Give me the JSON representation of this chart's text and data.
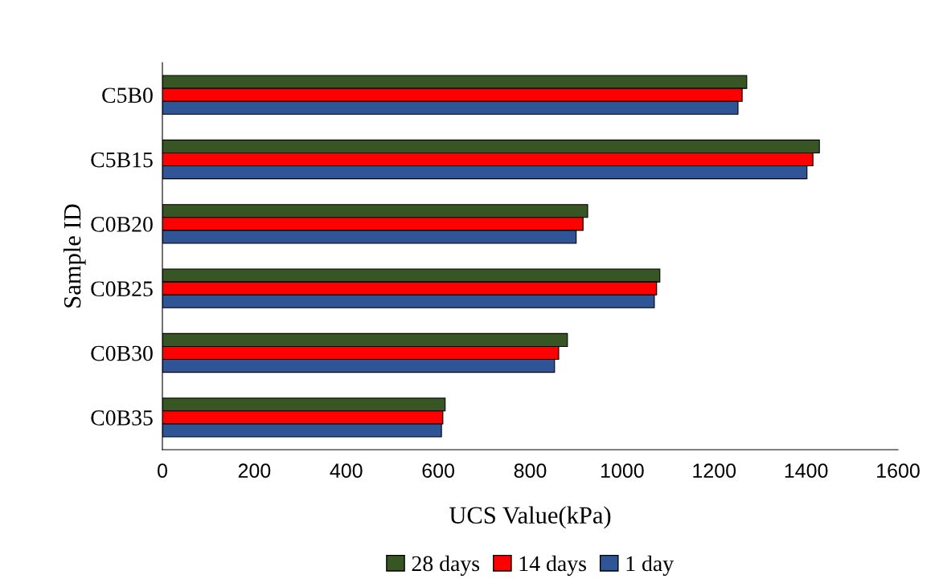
{
  "chart_data": {
    "type": "bar",
    "orientation": "horizontal",
    "xlabel": "UCS Value(kPa)",
    "ylabel": "Sample ID",
    "categories": [
      "C5B0",
      "C5B15",
      "C0B20",
      "C0B25",
      "C0B30",
      "C0B35"
    ],
    "series": [
      {
        "name": "28 days",
        "color": "#375623",
        "values": [
          1271,
          1429,
          925,
          1082,
          881,
          615
        ]
      },
      {
        "name": "14 days",
        "color": "#ff0000",
        "values": [
          1261,
          1415,
          915,
          1075,
          862,
          610
        ]
      },
      {
        "name": "1 day",
        "color": "#2f5597",
        "values": [
          1252,
          1402,
          900,
          1070,
          853,
          607
        ]
      }
    ],
    "xlim": [
      0,
      1600
    ],
    "xticks": [
      0,
      200,
      400,
      600,
      800,
      1000,
      1200,
      1400,
      1600
    ],
    "grid": false,
    "legend": "bottom"
  }
}
